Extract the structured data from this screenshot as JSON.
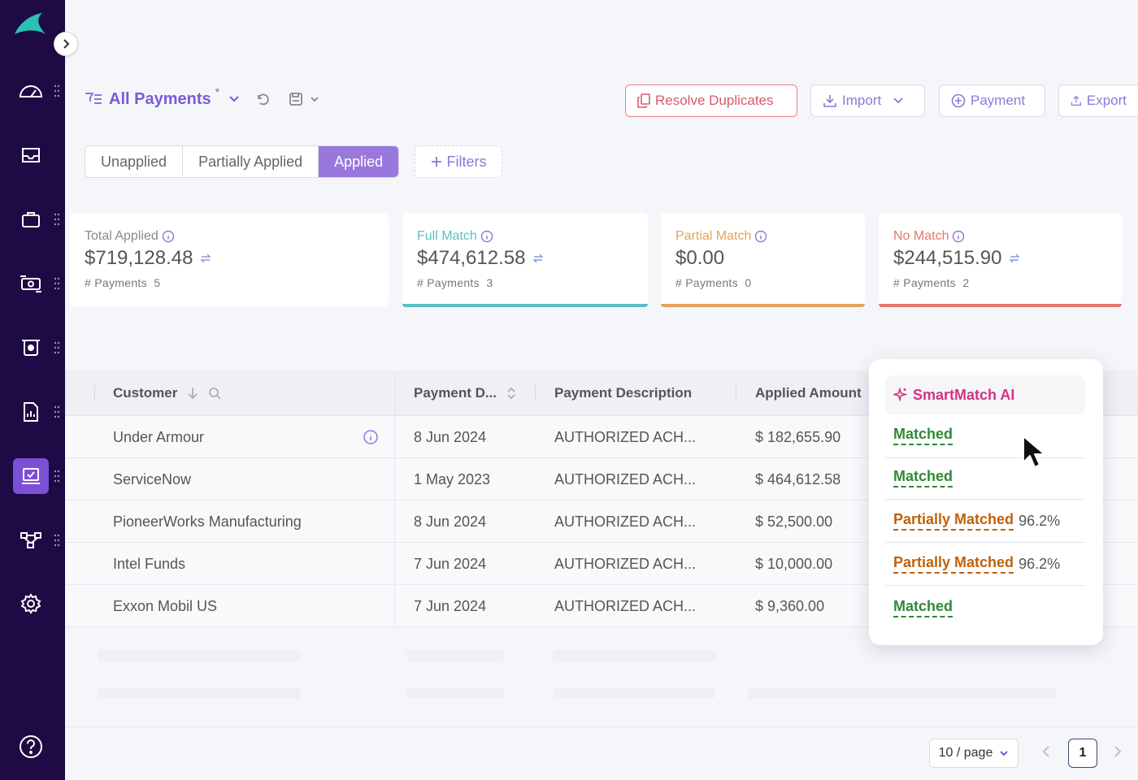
{
  "toolbar": {
    "view_title": "All Payments",
    "modified_marker": "*",
    "resolve_duplicates_label": "Resolve Duplicates",
    "import_label": "Import",
    "payment_label": "Payment",
    "export_label": "Export"
  },
  "status_tabs": [
    "Unapplied",
    "Partially Applied",
    "Applied"
  ],
  "active_status_tab": "Applied",
  "filters_label": "Filters",
  "summary_cards": [
    {
      "label": "Total Applied",
      "amount": "$719,128.48",
      "count_label": "# Payments",
      "count": "5",
      "color": "#8a8a8a"
    },
    {
      "label": "Full Match",
      "amount": "$474,612.58",
      "count_label": "# Payments",
      "count": "3",
      "color": "#5bbfc4"
    },
    {
      "label": "Partial Match",
      "amount": "$0.00",
      "count_label": "# Payments",
      "count": "0",
      "color": "#e0a45a"
    },
    {
      "label": "No Match",
      "amount": "$244,515.90",
      "count_label": "# Payments",
      "count": "2",
      "color": "#e4786a"
    }
  ],
  "table": {
    "columns": [
      "Customer",
      "Payment D...",
      "Payment Description",
      "Applied Amount"
    ],
    "rows": [
      {
        "customer": "Under Armour",
        "date": "8 Jun 2024",
        "description": "AUTHORIZED ACH...",
        "amount": "$ 182,655.90"
      },
      {
        "customer": "ServiceNow",
        "date": "1 May 2023",
        "description": "AUTHORIZED ACH...",
        "amount": "$ 464,612.58"
      },
      {
        "customer": "PioneerWorks Manufacturing",
        "date": "8 Jun 2024",
        "description": "AUTHORIZED ACH...",
        "amount": "$ 52,500.00"
      },
      {
        "customer": "Intel Funds",
        "date": "7 Jun 2024",
        "description": "AUTHORIZED ACH...",
        "amount": "$ 10,000.00"
      },
      {
        "customer": "Exxon Mobil US",
        "date": "7 Jun 2024",
        "description": "AUTHORIZED ACH...",
        "amount": "$ 9,360.00"
      }
    ]
  },
  "smartmatch": {
    "title": "SmartMatch AI",
    "rows": [
      {
        "status": "Matched",
        "percent": "",
        "tone": "green"
      },
      {
        "status": "Matched",
        "percent": "",
        "tone": "green"
      },
      {
        "status": "Partially Matched",
        "percent": "96.2%",
        "tone": "amber"
      },
      {
        "status": "Partially Matched",
        "percent": "96.2%",
        "tone": "amber"
      },
      {
        "status": "Matched",
        "percent": "",
        "tone": "green"
      }
    ]
  },
  "pagination": {
    "page_size_label": "10 / page",
    "current_page": "1"
  },
  "colors": {
    "sidebar_bg": "#1e0a44",
    "accent": "#7b5bd6",
    "active_tab": "#9878dc",
    "brand_logo": "#2bc0b4"
  },
  "sidebar_icons": [
    "dashboard-gauge-icon",
    "inbox-icon",
    "briefcase-icon",
    "cash-exchange-icon",
    "payment-terminal-icon",
    "report-document-icon",
    "cash-application-icon",
    "workflow-icon",
    "settings-icon",
    "help-icon"
  ]
}
